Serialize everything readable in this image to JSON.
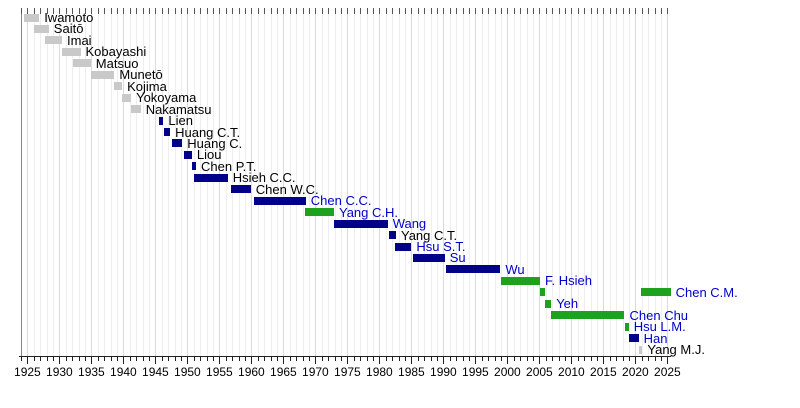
{
  "chart_data": {
    "type": "bar",
    "subtype": "gantt-timeline",
    "title": "",
    "xlabel": "",
    "ylabel": "",
    "grid": "vertical, 1-year minor / 5-year major",
    "legend": "none",
    "axis": {
      "year_start": 1924,
      "year_end": 2025.6,
      "minor_tick_every": 1,
      "labeled_tick_every": 5,
      "tick_labels": [
        "1925",
        "1930",
        "1935",
        "1940",
        "1945",
        "1950",
        "1955",
        "1960",
        "1965",
        "1970",
        "1975",
        "1980",
        "1985",
        "1990",
        "1995",
        "2000",
        "2005",
        "2010",
        "2015",
        "2020",
        "2025"
      ]
    },
    "colors": {
      "gray_bar": "#C9C9C9",
      "blue_bar": "#000088",
      "green_bar": "#1EA21E",
      "link_label": "#0000CC",
      "plain_label": "#000000",
      "grid_minor": "#EEEEEE",
      "grid_major": "#DBDBDB",
      "left_border": "#888888",
      "axis_line": "#222222"
    },
    "rows": [
      {
        "label": "Iwamoto",
        "party_color": "gray",
        "label_style": "plain",
        "bars": [
          [
            1924.4,
            1926.85
          ]
        ]
      },
      {
        "label": "Saitō",
        "party_color": "gray",
        "label_style": "plain",
        "bars": [
          [
            1926.0,
            1928.35
          ]
        ]
      },
      {
        "label": "Imai",
        "party_color": "gray",
        "label_style": "plain",
        "bars": [
          [
            1927.8,
            1930.4
          ]
        ]
      },
      {
        "label": "Kobayashi",
        "party_color": "gray",
        "label_style": "plain",
        "bars": [
          [
            1930.4,
            1933.3
          ]
        ]
      },
      {
        "label": "Matsuo",
        "party_color": "gray",
        "label_style": "plain",
        "bars": [
          [
            1932.1,
            1934.9
          ]
        ]
      },
      {
        "label": "Munetō",
        "party_color": "gray",
        "label_style": "plain",
        "bars": [
          [
            1935.0,
            1938.6
          ]
        ]
      },
      {
        "label": "Kojima",
        "party_color": "gray",
        "label_style": "plain",
        "bars": [
          [
            1938.5,
            1939.8
          ]
        ]
      },
      {
        "label": "Yokoyama",
        "party_color": "gray",
        "label_style": "plain",
        "bars": [
          [
            1939.8,
            1941.2
          ]
        ]
      },
      {
        "label": "Nakamatsu",
        "party_color": "gray",
        "label_style": "plain",
        "bars": [
          [
            1941.2,
            1942.7
          ]
        ]
      },
      {
        "label": "Lien",
        "party_color": "blue",
        "label_style": "plain",
        "bars": [
          [
            1945.6,
            1946.25
          ]
        ]
      },
      {
        "label": "Huang C.T.",
        "party_color": "blue",
        "label_style": "plain",
        "bars": [
          [
            1946.3,
            1947.3
          ]
        ]
      },
      {
        "label": "Huang C.",
        "party_color": "blue",
        "label_style": "plain",
        "bars": [
          [
            1947.6,
            1949.2
          ]
        ]
      },
      {
        "label": "Liou",
        "party_color": "blue",
        "label_style": "plain",
        "bars": [
          [
            1949.5,
            1950.7
          ]
        ]
      },
      {
        "label": "Chen P.T.",
        "party_color": "blue",
        "label_style": "plain",
        "bars": [
          [
            1950.75,
            1951.35
          ]
        ]
      },
      {
        "label": "Hsieh C.C.",
        "party_color": "blue",
        "label_style": "plain",
        "bars": [
          [
            1951.0,
            1956.3
          ]
        ]
      },
      {
        "label": "Chen W.C.",
        "party_color": "blue",
        "label_style": "plain",
        "bars": [
          [
            1956.8,
            1959.9
          ]
        ]
      },
      {
        "label": "Chen C.C.",
        "party_color": "blue",
        "label_style": "link",
        "bars": [
          [
            1960.4,
            1968.5
          ]
        ]
      },
      {
        "label": "Yang C.H.",
        "party_color": "green",
        "label_style": "link",
        "bars": [
          [
            1968.4,
            1972.9
          ]
        ]
      },
      {
        "label": "Wang",
        "party_color": "blue",
        "label_style": "link",
        "bars": [
          [
            1972.9,
            1981.3
          ]
        ]
      },
      {
        "label": "Yang C.T.",
        "party_color": "blue",
        "label_style": "plain",
        "bars": [
          [
            1981.5,
            1982.6
          ]
        ]
      },
      {
        "label": "Hsu S.T.",
        "party_color": "blue",
        "label_style": "link",
        "bars": [
          [
            1982.5,
            1985.0
          ]
        ]
      },
      {
        "label": "Su",
        "party_color": "blue",
        "label_style": "link",
        "bars": [
          [
            1985.2,
            1990.2
          ]
        ]
      },
      {
        "label": "Wu",
        "party_color": "blue",
        "label_style": "link",
        "bars": [
          [
            1990.4,
            1998.9
          ]
        ]
      },
      {
        "label": "F. Hsieh",
        "party_color": "green",
        "label_style": "link",
        "bars": [
          [
            1999.0,
            2005.1
          ]
        ]
      },
      {
        "label": "Chen C.M.",
        "party_color": "green",
        "label_style": "link",
        "bars": [
          [
            2005.1,
            2005.85
          ],
          [
            2020.8,
            2025.5
          ]
        ]
      },
      {
        "label": "Yeh",
        "party_color": "green",
        "label_style": "link",
        "bars": [
          [
            2005.85,
            2006.85
          ]
        ]
      },
      {
        "label": "Chen Chu",
        "party_color": "green",
        "label_style": "link",
        "bars": [
          [
            2006.85,
            2018.3
          ]
        ]
      },
      {
        "label": "Hsu L.M.",
        "party_color": "green",
        "label_style": "link",
        "bars": [
          [
            2018.3,
            2018.95
          ]
        ]
      },
      {
        "label": "Han",
        "party_color": "blue",
        "label_style": "link",
        "bars": [
          [
            2018.95,
            2020.5
          ]
        ]
      },
      {
        "label": "Yang M.J.",
        "party_color": "gray",
        "label_style": "plain",
        "bars": [
          [
            2020.5,
            2021.1
          ]
        ]
      }
    ]
  }
}
